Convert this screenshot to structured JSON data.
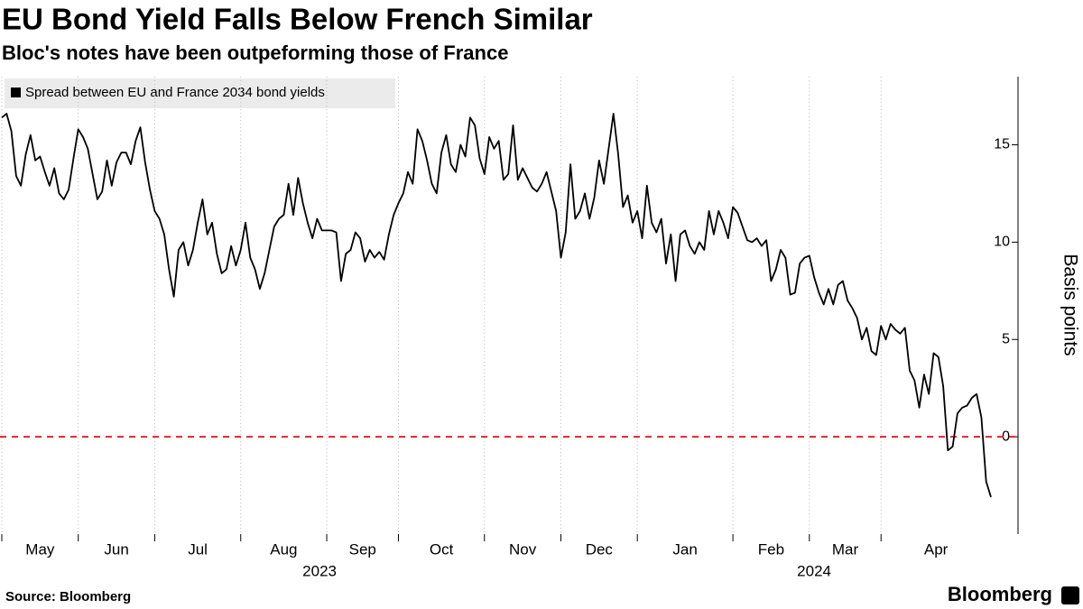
{
  "chart_data": {
    "type": "line",
    "title": "EU Bond Yield Falls Below French Similar",
    "subtitle": "Bloc's notes have been outpeforming those of France",
    "y_label": "Basis points",
    "source": "Source: Bloomberg",
    "brand": "Bloomberg",
    "series": [
      {
        "name": "Spread between EU and France 2034 bond yields",
        "color": "#000000",
        "values": [
          16.4,
          16.6,
          15.7,
          13.4,
          12.9,
          14.5,
          15.5,
          14.2,
          14.4,
          13.6,
          12.9,
          13.8,
          12.5,
          12.2,
          12.7,
          14.3,
          15.8,
          15.4,
          14.8,
          13.5,
          12.2,
          12.6,
          14.2,
          12.9,
          14.1,
          14.6,
          14.6,
          14.0,
          15.2,
          15.9,
          14.1,
          12.7,
          11.6,
          11.2,
          10.4,
          8.6,
          7.2,
          9.6,
          10.0,
          8.8,
          9.6,
          11.0,
          12.2,
          10.4,
          11.0,
          9.4,
          8.4,
          8.6,
          9.8,
          8.8,
          9.6,
          11.0,
          9.2,
          8.6,
          7.6,
          8.4,
          9.6,
          10.8,
          11.2,
          11.4,
          13.0,
          11.4,
          13.3,
          12.0,
          11.0,
          10.2,
          11.2,
          10.6,
          10.6,
          10.6,
          10.5,
          8.0,
          9.4,
          9.6,
          10.5,
          10.2,
          9.0,
          9.6,
          9.2,
          9.5,
          9.1,
          10.4,
          11.4,
          12.0,
          12.5,
          13.6,
          13.0,
          15.8,
          15.2,
          14.2,
          13.0,
          12.5,
          14.6,
          15.5,
          14.0,
          13.6,
          15.0,
          14.4,
          16.4,
          16.0,
          14.3,
          13.5,
          15.4,
          14.8,
          15.2,
          13.2,
          13.5,
          16.0,
          13.2,
          13.8,
          13.3,
          12.8,
          12.6,
          13.0,
          13.6,
          12.6,
          11.6,
          9.2,
          10.5,
          14.0,
          11.2,
          11.6,
          12.5,
          11.2,
          12.3,
          14.2,
          13.0,
          14.8,
          16.6,
          14.5,
          11.8,
          12.4,
          11.0,
          11.6,
          10.2,
          12.9,
          11.0,
          10.5,
          11.2,
          8.9,
          10.4,
          8.0,
          10.4,
          10.6,
          9.8,
          9.4,
          10.0,
          9.6,
          11.6,
          10.4,
          11.6,
          11.0,
          10.2,
          11.8,
          11.5,
          10.8,
          10.1,
          10.0,
          10.2,
          9.8,
          10.1,
          8.0,
          8.6,
          9.6,
          9.2,
          7.3,
          7.4,
          8.9,
          9.2,
          9.3,
          8.2,
          7.4,
          6.8,
          7.6,
          6.8,
          7.8,
          8.0,
          7.0,
          6.6,
          6.1,
          5.0,
          5.6,
          4.4,
          4.2,
          5.7,
          5.0,
          5.8,
          5.5,
          5.3,
          5.6,
          3.4,
          2.9,
          1.5,
          3.2,
          2.2,
          4.3,
          4.1,
          2.6,
          -0.7,
          -0.5,
          1.2,
          1.5,
          1.6,
          2.0,
          2.2,
          1.0,
          -2.3,
          -3.1
        ]
      }
    ],
    "categories": [
      "May",
      null,
      null,
      null,
      null,
      null,
      null,
      null,
      null,
      null,
      null,
      null,
      null,
      null,
      null,
      null,
      "Jun",
      null,
      null,
      null,
      null,
      null,
      null,
      null,
      null,
      null,
      null,
      null,
      null,
      null,
      null,
      null,
      "Jul",
      null,
      null,
      null,
      null,
      null,
      null,
      null,
      null,
      null,
      null,
      null,
      null,
      null,
      null,
      null,
      null,
      null,
      "Aug",
      null,
      null,
      null,
      null,
      null,
      null,
      null,
      null,
      null,
      null,
      null,
      null,
      null,
      null,
      null,
      null,
      null,
      "Sep",
      null,
      null,
      null,
      null,
      null,
      null,
      null,
      null,
      null,
      null,
      null,
      null,
      null,
      null,
      "Oct",
      null,
      null,
      null,
      null,
      null,
      null,
      null,
      null,
      null,
      null,
      null,
      null,
      null,
      null,
      null,
      null,
      null,
      "Nov",
      null,
      null,
      null,
      null,
      null,
      null,
      null,
      null,
      null,
      null,
      null,
      null,
      null,
      null,
      null,
      "Dec",
      null,
      null,
      null,
      null,
      null,
      null,
      null,
      null,
      null,
      null,
      null,
      null,
      null,
      null,
      null,
      "Jan",
      null,
      null,
      null,
      null,
      null,
      null,
      null,
      null,
      null,
      null,
      null,
      null,
      null,
      null,
      null,
      null,
      null,
      null,
      null,
      "Feb",
      null,
      null,
      null,
      null,
      null,
      null,
      null,
      null,
      null,
      null,
      null,
      null,
      null,
      null,
      null,
      "Mar",
      null,
      null,
      null,
      null,
      null,
      null,
      null,
      null,
      null,
      null,
      null,
      null,
      null,
      null,
      "Apr",
      null,
      null,
      null,
      null,
      null,
      null,
      null,
      null,
      null,
      null,
      null,
      null,
      null,
      null,
      null,
      null,
      null,
      null,
      null,
      null,
      null,
      null,
      null
    ],
    "x_groups": [
      "2023",
      null,
      null,
      null,
      null,
      null,
      null,
      null,
      null,
      null,
      null,
      null,
      null,
      null,
      null,
      null,
      null,
      null,
      null,
      null,
      null,
      null,
      null,
      null,
      null,
      null,
      null,
      null,
      null,
      null,
      null,
      null,
      null,
      null,
      null,
      null,
      null,
      null,
      null,
      null,
      null,
      null,
      null,
      null,
      null,
      null,
      null,
      null,
      null,
      null,
      null,
      null,
      null,
      null,
      null,
      null,
      null,
      null,
      null,
      null,
      null,
      null,
      null,
      null,
      null,
      null,
      null,
      null,
      null,
      null,
      null,
      null,
      null,
      null,
      null,
      null,
      null,
      null,
      null,
      null,
      null,
      null,
      null,
      null,
      null,
      null,
      null,
      null,
      null,
      null,
      null,
      null,
      null,
      null,
      null,
      null,
      null,
      null,
      null,
      null,
      null,
      null,
      null,
      null,
      null,
      null,
      null,
      null,
      null,
      null,
      null,
      null,
      null,
      null,
      null,
      null,
      null,
      null,
      null,
      null,
      null,
      null,
      null,
      null,
      null,
      null,
      null,
      null,
      null,
      null,
      null,
      null,
      null,
      "2024",
      null,
      null,
      null,
      null,
      null,
      null,
      null,
      null,
      null,
      null,
      null,
      null,
      null,
      null,
      null,
      null,
      null,
      null,
      null,
      null,
      null,
      null,
      null,
      null,
      null,
      null,
      null,
      null,
      null,
      null,
      null,
      null,
      null,
      null,
      null,
      null,
      null,
      null,
      null,
      null,
      null,
      null,
      null,
      null,
      null,
      null,
      null,
      null,
      null,
      null,
      null,
      null,
      null,
      null,
      null,
      null,
      null,
      null,
      null,
      null,
      null,
      null,
      null,
      null,
      null,
      null,
      null,
      null,
      null,
      null,
      null,
      null,
      null,
      null
    ],
    "ylim": [
      -5,
      18.5
    ],
    "yticks": [
      0,
      5,
      10,
      15
    ],
    "reference_line": {
      "value": 0,
      "color": "#e8212e"
    }
  }
}
